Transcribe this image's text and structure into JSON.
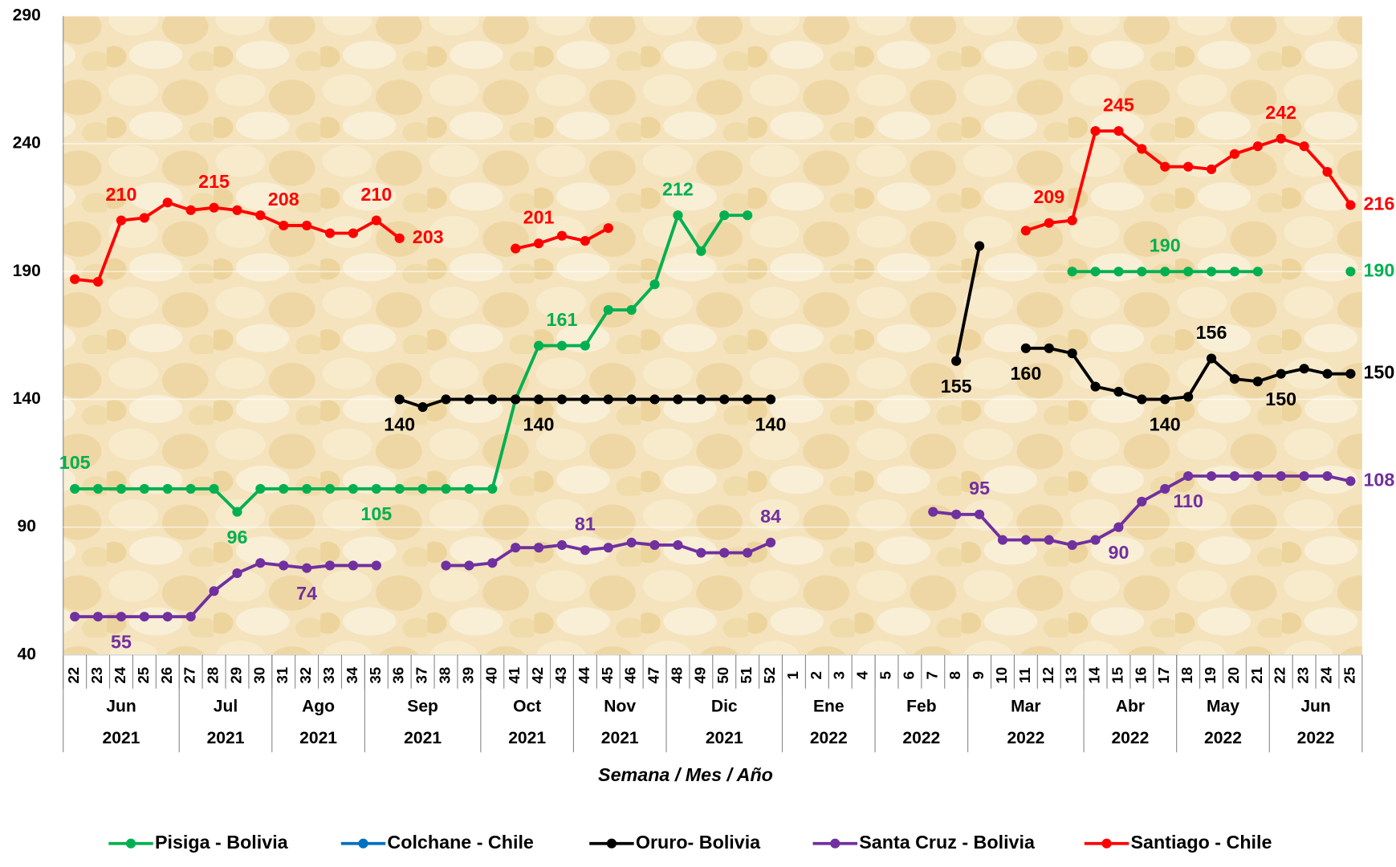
{
  "chart_data": {
    "type": "line",
    "x_label": "Semana / Mes / Año",
    "categories": [
      "22",
      "23",
      "24",
      "25",
      "26",
      "27",
      "28",
      "29",
      "30",
      "31",
      "32",
      "33",
      "34",
      "35",
      "36",
      "37",
      "38",
      "39",
      "40",
      "41",
      "42",
      "43",
      "44",
      "45",
      "46",
      "47",
      "48",
      "49",
      "50",
      "51",
      "52",
      "1",
      "2",
      "3",
      "4",
      "5",
      "6",
      "7",
      "8",
      "9",
      "10",
      "11",
      "12",
      "13",
      "14",
      "15",
      "16",
      "17",
      "18",
      "19",
      "20",
      "21",
      "22",
      "23",
      "24",
      "25"
    ],
    "category_months": [
      "Jun",
      "Jun",
      "Jun",
      "Jun",
      "Jun",
      "Jul",
      "Jul",
      "Jul",
      "Jul",
      "Ago",
      "Ago",
      "Ago",
      "Ago",
      "Sep",
      "Sep",
      "Sep",
      "Sep",
      "Sep",
      "Oct",
      "Oct",
      "Oct",
      "Oct",
      "Nov",
      "Nov",
      "Nov",
      "Nov",
      "Dic",
      "Dic",
      "Dic",
      "Dic",
      "Dic",
      "Ene",
      "Ene",
      "Ene",
      "Ene",
      "Feb",
      "Feb",
      "Feb",
      "Feb",
      "Mar",
      "Mar",
      "Mar",
      "Mar",
      "Mar",
      "Abr",
      "Abr",
      "Abr",
      "Abr",
      "May",
      "May",
      "May",
      "May",
      "Jun",
      "Jun",
      "Jun",
      "Jun"
    ],
    "category_years": [
      "2021",
      "2021",
      "2021",
      "2021",
      "2021",
      "2021",
      "2021",
      "2021",
      "2021",
      "2021",
      "2021",
      "2021",
      "2021",
      "2021",
      "2021",
      "2021",
      "2021",
      "2021",
      "2021",
      "2021",
      "2021",
      "2021",
      "2021",
      "2021",
      "2021",
      "2021",
      "2021",
      "2021",
      "2021",
      "2021",
      "2021",
      "2022",
      "2022",
      "2022",
      "2022",
      "2022",
      "2022",
      "2022",
      "2022",
      "2022",
      "2022",
      "2022",
      "2022",
      "2022",
      "2022",
      "2022",
      "2022",
      "2022",
      "2022",
      "2022",
      "2022",
      "2022",
      "2022",
      "2022",
      "2022",
      "2022"
    ],
    "ylim": [
      40,
      290
    ],
    "yticks": [
      40,
      90,
      140,
      190,
      240,
      290
    ],
    "grid": true,
    "series": [
      {
        "name": "Pisiga - Bolivia",
        "color": "#00b050",
        "values": [
          105,
          105,
          105,
          105,
          105,
          105,
          105,
          96,
          105,
          105,
          105,
          105,
          105,
          105,
          105,
          105,
          105,
          105,
          105,
          140,
          161,
          161,
          161,
          175,
          175,
          185,
          212,
          198,
          212,
          212,
          null,
          null,
          null,
          null,
          null,
          null,
          null,
          null,
          null,
          null,
          null,
          null,
          null,
          190,
          190,
          190,
          190,
          190,
          190,
          190,
          190,
          190,
          null,
          null,
          null,
          190
        ],
        "value_labels": [
          "105",
          null,
          null,
          null,
          null,
          null,
          null,
          "96",
          null,
          null,
          null,
          null,
          null,
          "105",
          null,
          null,
          null,
          null,
          null,
          null,
          null,
          "161",
          null,
          null,
          null,
          null,
          "212",
          null,
          null,
          null,
          null,
          null,
          null,
          null,
          null,
          null,
          null,
          null,
          null,
          null,
          null,
          null,
          null,
          null,
          null,
          null,
          null,
          "190",
          null,
          null,
          null,
          null,
          null,
          null,
          null,
          "190"
        ]
      },
      {
        "name": "Colchane - Chile",
        "color": "#0070c0",
        "values": [
          null,
          null,
          null,
          null,
          null,
          null,
          null,
          null,
          null,
          null,
          null,
          null,
          null,
          null,
          null,
          null,
          null,
          null,
          null,
          null,
          null,
          null,
          null,
          null,
          null,
          null,
          null,
          null,
          null,
          null,
          null,
          null,
          null,
          null,
          null,
          null,
          null,
          null,
          null,
          null,
          null,
          null,
          null,
          null,
          null,
          null,
          null,
          null,
          null,
          null,
          null,
          null,
          null,
          null,
          null,
          null
        ]
      },
      {
        "name": "Oruro- Bolivia",
        "color": "#000000",
        "values": [
          null,
          null,
          null,
          null,
          null,
          null,
          null,
          null,
          null,
          null,
          null,
          null,
          null,
          null,
          140,
          137,
          140,
          140,
          140,
          140,
          140,
          140,
          140,
          140,
          140,
          140,
          140,
          140,
          140,
          140,
          140,
          null,
          null,
          null,
          null,
          null,
          null,
          null,
          155,
          200,
          null,
          160,
          160,
          158,
          145,
          143,
          140,
          140,
          141,
          156,
          148,
          147,
          150,
          152,
          150,
          150
        ],
        "value_labels": [
          null,
          null,
          null,
          null,
          null,
          null,
          null,
          null,
          null,
          null,
          null,
          null,
          null,
          null,
          "140",
          null,
          null,
          null,
          null,
          null,
          "140",
          null,
          null,
          null,
          null,
          null,
          null,
          null,
          null,
          null,
          "140",
          null,
          null,
          null,
          null,
          null,
          null,
          null,
          "155",
          null,
          null,
          "160",
          null,
          null,
          null,
          null,
          null,
          "140",
          null,
          "156",
          null,
          null,
          "150",
          null,
          null,
          "150"
        ]
      },
      {
        "name": "Santa Cruz - Bolivia",
        "color": "#7030a0",
        "values": [
          55,
          55,
          55,
          55,
          55,
          55,
          65,
          72,
          76,
          75,
          74,
          75,
          75,
          75,
          null,
          null,
          75,
          75,
          76,
          82,
          82,
          83,
          81,
          82,
          84,
          83,
          83,
          80,
          80,
          80,
          84,
          null,
          null,
          null,
          null,
          null,
          null,
          96,
          95,
          95,
          85,
          85,
          85,
          83,
          85,
          90,
          100,
          105,
          110,
          110,
          110,
          110,
          110,
          110,
          110,
          108
        ],
        "value_labels": [
          null,
          null,
          "55",
          null,
          null,
          null,
          null,
          null,
          null,
          null,
          "74",
          null,
          null,
          null,
          null,
          null,
          null,
          null,
          null,
          null,
          null,
          null,
          "81",
          null,
          null,
          null,
          null,
          null,
          null,
          null,
          "84",
          null,
          null,
          null,
          null,
          null,
          null,
          null,
          null,
          "95",
          null,
          null,
          null,
          null,
          null,
          "90",
          null,
          null,
          "110",
          null,
          null,
          null,
          null,
          null,
          null,
          "108"
        ]
      },
      {
        "name": "Santiago - Chile",
        "color": "#ff0000",
        "values": [
          187,
          186,
          210,
          211,
          217,
          214,
          215,
          214,
          212,
          208,
          208,
          205,
          205,
          210,
          203,
          null,
          null,
          null,
          null,
          199,
          201,
          204,
          202,
          207,
          null,
          null,
          null,
          null,
          null,
          null,
          null,
          null,
          null,
          null,
          null,
          null,
          null,
          null,
          null,
          null,
          null,
          206,
          209,
          210,
          245,
          245,
          238,
          231,
          231,
          230,
          236,
          239,
          242,
          239,
          229,
          216
        ],
        "value_labels": [
          null,
          null,
          "210",
          null,
          null,
          null,
          "215",
          null,
          null,
          "208",
          null,
          null,
          null,
          "210",
          "203",
          null,
          null,
          null,
          null,
          null,
          "201",
          null,
          null,
          null,
          null,
          null,
          null,
          null,
          null,
          null,
          null,
          null,
          null,
          null,
          null,
          null,
          null,
          null,
          null,
          null,
          null,
          null,
          "209",
          null,
          null,
          "245",
          null,
          null,
          null,
          null,
          null,
          null,
          "242",
          null,
          null,
          "216"
        ]
      }
    ]
  }
}
